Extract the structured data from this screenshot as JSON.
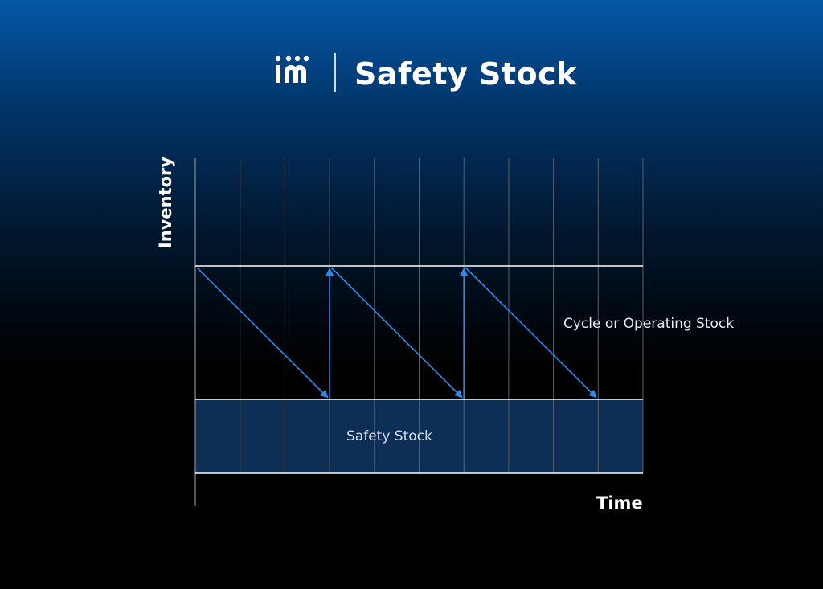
{
  "header": {
    "logo_text": "im",
    "title": "Safety Stock"
  },
  "diagram": {
    "y_axis_label": "Inventory",
    "x_axis_label": "Time",
    "cycle_stock_label": "Cycle or Operating Stock",
    "safety_stock_label": "Safety Stock",
    "colors": {
      "background_top": "#0558a6",
      "background_bottom": "#000000",
      "safety_band": "#0d2f56",
      "arrow": "#2f8bea",
      "lines": "#ffffff",
      "grid": "#5a5f66"
    },
    "vertical_gridlines": 10,
    "replenishment_cycles": 3
  }
}
